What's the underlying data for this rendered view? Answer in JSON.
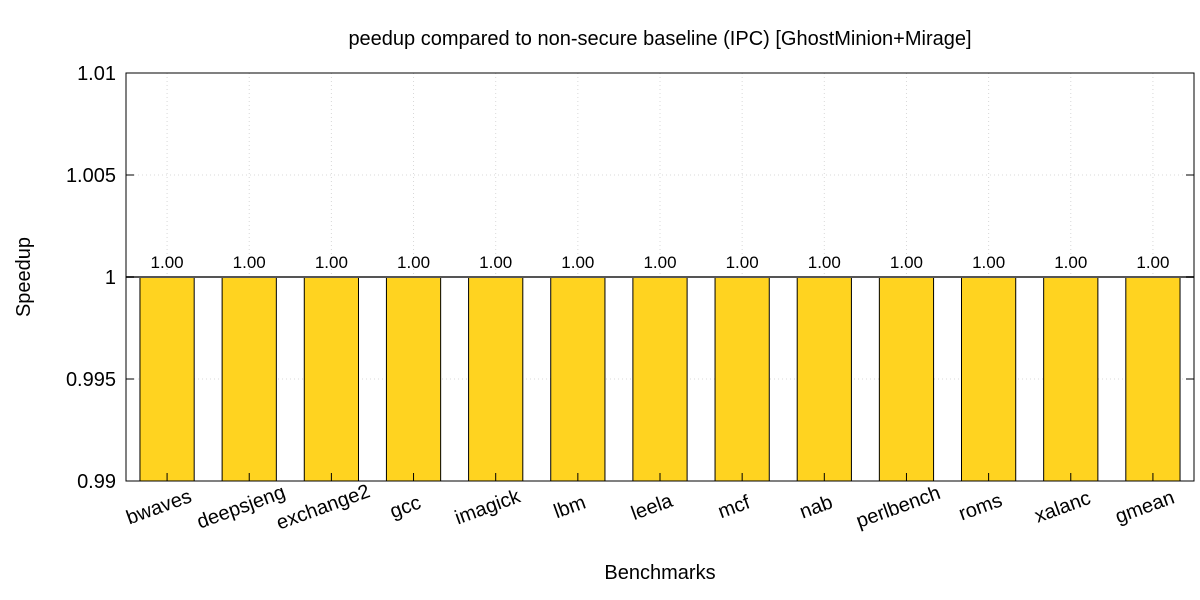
{
  "chart_data": {
    "type": "bar",
    "title": "peedup compared to non-secure baseline (IPC) [GhostMinion+Mirage]",
    "xlabel": "Benchmarks",
    "ylabel": "Speedup",
    "ylim": [
      0.99,
      1.01
    ],
    "yticks": [
      0.99,
      0.995,
      1,
      1.005,
      1.01
    ],
    "ytick_labels": [
      "0.99",
      "0.995",
      "1",
      "1.005",
      "1.01"
    ],
    "baseline": 1,
    "grid": true,
    "categories": [
      "bwaves",
      "deepsjeng",
      "exchange2",
      "gcc",
      "imagick",
      "lbm",
      "leela",
      "mcf",
      "nab",
      "perlbench",
      "roms",
      "xalanc",
      "gmean"
    ],
    "values": [
      1.0,
      1.0,
      1.0,
      1.0,
      1.0,
      1.0,
      1.0,
      1.0,
      1.0,
      1.0,
      1.0,
      1.0,
      1.0
    ],
    "value_labels": [
      "1.00",
      "1.00",
      "1.00",
      "1.00",
      "1.00",
      "1.00",
      "1.00",
      "1.00",
      "1.00",
      "1.00",
      "1.00",
      "1.00",
      "1.00"
    ],
    "bar_color": "#ffd320",
    "bar_bottom": 0.99
  }
}
